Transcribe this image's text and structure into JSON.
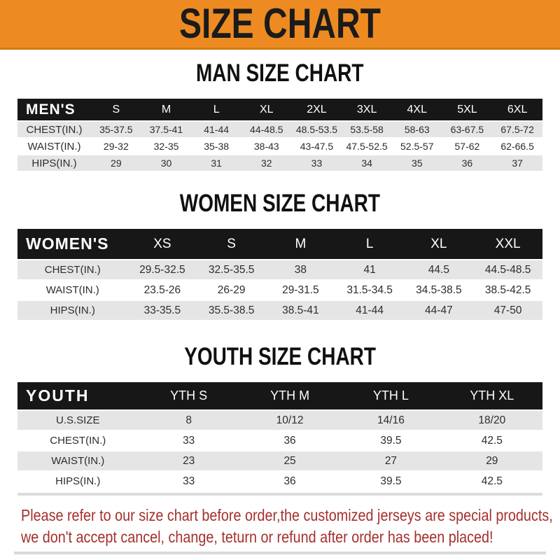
{
  "banner": {
    "title": "SIZE CHART",
    "bg_color": "#ED8B22",
    "text_color": "#1b1b1b"
  },
  "colors": {
    "table_header_bg": "#171717",
    "table_header_text": "#ffffff",
    "stripe_row_bg": "#e5e5e5",
    "plain_row_bg": "#ffffff",
    "footer_text": "#A5302C"
  },
  "sections": [
    {
      "heading": "MAN SIZE CHART",
      "table": {
        "header_label": "MEN'S",
        "columns": [
          "S",
          "M",
          "L",
          "XL",
          "2XL",
          "3XL",
          "4XL",
          "5XL",
          "6XL"
        ],
        "rows": [
          {
            "label": "CHEST(IN.)",
            "values": [
              "35-37.5",
              "37.5-41",
              "41-44",
              "44-48.5",
              "48.5-53.5",
              "53.5-58",
              "58-63",
              "63-67.5",
              "67.5-72"
            ]
          },
          {
            "label": "WAIST(IN.)",
            "values": [
              "29-32",
              "32-35",
              "35-38",
              "38-43",
              "43-47.5",
              "47.5-52.5",
              "52.5-57",
              "57-62",
              "62-66.5"
            ]
          },
          {
            "label": "HIPS(IN.)",
            "values": [
              "29",
              "30",
              "31",
              "32",
              "33",
              "34",
              "35",
              "36",
              "37"
            ]
          }
        ]
      }
    },
    {
      "heading": "WOMEN SIZE CHART",
      "table": {
        "header_label": "WOMEN'S",
        "columns": [
          "XS",
          "S",
          "M",
          "L",
          "XL",
          "XXL"
        ],
        "rows": [
          {
            "label": "CHEST(IN.)",
            "values": [
              "29.5-32.5",
              "32.5-35.5",
              "38",
              "41",
              "44.5",
              "44.5-48.5"
            ]
          },
          {
            "label": "WAIST(IN.)",
            "values": [
              "23.5-26",
              "26-29",
              "29-31.5",
              "31.5-34.5",
              "34.5-38.5",
              "38.5-42.5"
            ]
          },
          {
            "label": "HIPS(IN.)",
            "values": [
              "33-35.5",
              "35.5-38.5",
              "38.5-41",
              "41-44",
              "44-47",
              "47-50"
            ]
          }
        ]
      }
    },
    {
      "heading": "YOUTH SIZE CHART",
      "table": {
        "header_label": "YOUTH",
        "columns": [
          "YTH S",
          "YTH M",
          "YTH L",
          "YTH XL"
        ],
        "rows": [
          {
            "label": "U.S.SIZE",
            "values": [
              "8",
              "10/12",
              "14/16",
              "18/20"
            ]
          },
          {
            "label": "CHEST(IN.)",
            "values": [
              "33",
              "36",
              "39.5",
              "42.5"
            ]
          },
          {
            "label": "WAIST(IN.)",
            "values": [
              "23",
              "25",
              "27",
              "29"
            ]
          },
          {
            "label": "HIPS(IN.)",
            "values": [
              "33",
              "36",
              "39.5",
              "42.5"
            ]
          }
        ]
      }
    }
  ],
  "footer": {
    "line1": "Please refer to our size chart before order,the customized jerseys are special products,",
    "line2": "we don't accept cancel, change, teturn or refund after order has been placed!"
  }
}
